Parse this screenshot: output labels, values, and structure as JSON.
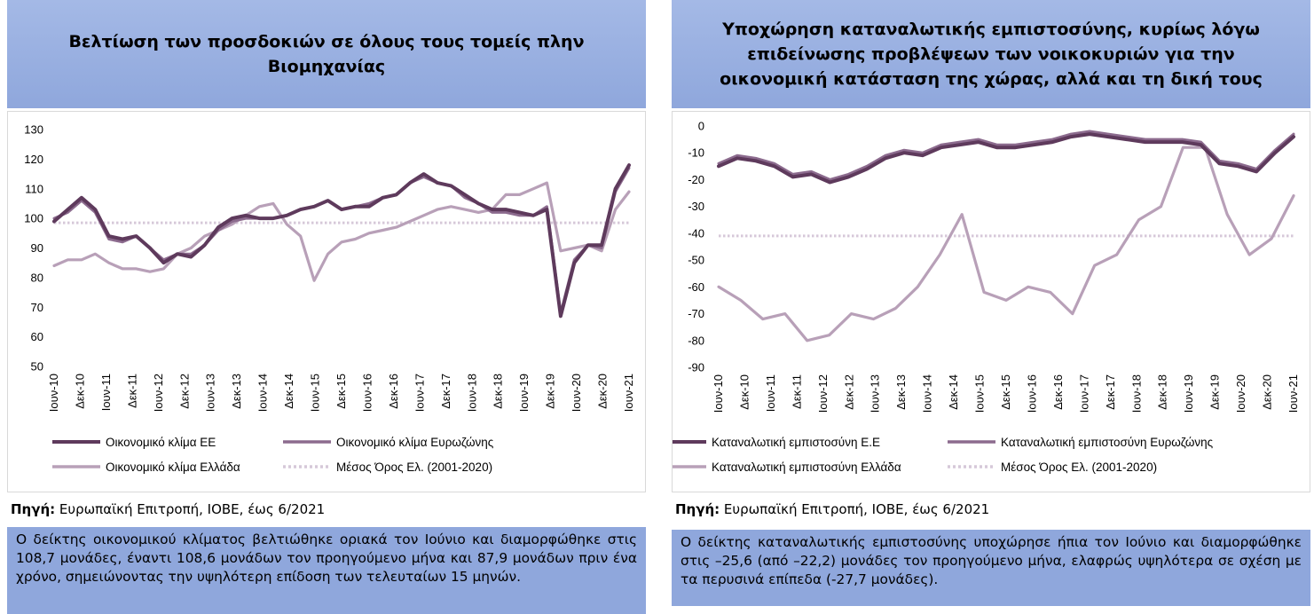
{
  "left": {
    "title": "Βελτίωση των προσδοκιών σε όλους τους τομείς πλην Βιομηχανίας",
    "source_label": "Πηγή:",
    "source_text": "Ευρωπαϊκή Επιτροπή, ΙΟΒΕ, έως 6/2021",
    "note": "Ο δείκτης οικονομικού κλίματος βελτιώθηκε οριακά τον Ιούνιο και διαμορφώθηκε στις 108,7 μονάδες, έναντι 108,6 μονάδων τον προηγούμενο μήνα και 87,9 μονάδων πριν ένα χρόνο, σημειώνοντας την υψηλότερη επίδοση των τελευταίων 15 μηνών."
  },
  "right": {
    "title": "Υποχώρηση καταναλωτικής εμπιστοσύνης, κυρίως λόγω επιδείνωσης προβλέψεων των νοικοκυριών για την οικονομική κατάσταση της χώρας, αλλά και τη δική τους",
    "source_label": "Πηγή:",
    "source_text": "Ευρωπαϊκή Επιτροπή, ΙΟΒΕ, έως 6/2021",
    "note": "Ο δείκτης καταναλωτικής εμπιστοσύνης υποχώρησε ήπια τον Ιούνιο και διαμορφώθηκε στις –25,6 (από –22,2) μονάδες τον προηγούμενο μήνα, ελαφρώς υψηλότερα σε σχέση με τα περυσινά επίπεδα (-27,7 μονάδες)."
  },
  "colors": {
    "ee": "#5e3a5c",
    "ez": "#8c6b8e",
    "gr": "#b8a0b8",
    "avg": "#d6c8d9",
    "title_bg": "#a4b9e6",
    "note_bg": "#8fa7dc"
  },
  "chart_data": [
    {
      "type": "line",
      "title": "",
      "xlabel": "",
      "ylabel": "",
      "ylim": [
        50,
        130
      ],
      "yticks": [
        50,
        60,
        70,
        80,
        90,
        100,
        110,
        120,
        130
      ],
      "legend": "bottom",
      "grid": false,
      "x_ticks": [
        "Ιουν-10",
        "Δεκ-10",
        "Ιουν-11",
        "Δεκ-11",
        "Ιουν-12",
        "Δεκ-12",
        "Ιουν-13",
        "Δεκ-13",
        "Ιουν-14",
        "Δεκ-14",
        "Ιουν-15",
        "Δεκ-15",
        "Ιουν-16",
        "Δεκ-16",
        "Ιουν-17",
        "Δεκ-17",
        "Ιουν-18",
        "Δεκ-18",
        "Ιουν-19",
        "Δεκ-19",
        "Ιουν-20",
        "Δεκ-20",
        "Ιουν-21"
      ],
      "series": [
        {
          "name": "Οικονομικό κλίμα ΕΕ",
          "style": "ee",
          "values": [
            99,
            103,
            107,
            103,
            94,
            93,
            94,
            90,
            85,
            88,
            87,
            91,
            97,
            100,
            101,
            100,
            100,
            101,
            103,
            104,
            106,
            103,
            104,
            104,
            107,
            108,
            112,
            115,
            112,
            111,
            108,
            105,
            103,
            103,
            102,
            101,
            103,
            67,
            85,
            91,
            91,
            110,
            118
          ]
        },
        {
          "name": "Οικονομικό κλίμα Ευρωζώνης",
          "style": "ez",
          "values": [
            100,
            102,
            106,
            102,
            93,
            92,
            94,
            90,
            86,
            88,
            88,
            91,
            96,
            99,
            100,
            100,
            100,
            101,
            103,
            104,
            106,
            103,
            104,
            105,
            107,
            108,
            112,
            114,
            112,
            111,
            107,
            105,
            102,
            102,
            101,
            101,
            104,
            68,
            86,
            91,
            90,
            109,
            117
          ]
        },
        {
          "name": "Οικονομικό κλίμα Ελλάδα",
          "style": "gr",
          "values": [
            84,
            86,
            86,
            88,
            85,
            83,
            83,
            82,
            83,
            88,
            90,
            94,
            96,
            98,
            101,
            104,
            105,
            98,
            94,
            79,
            88,
            92,
            93,
            95,
            96,
            97,
            99,
            101,
            103,
            104,
            103,
            102,
            103,
            108,
            108,
            110,
            112,
            89,
            90,
            91,
            89,
            103,
            109
          ]
        },
        {
          "name": "Μέσος Όρος Ελ. (2001-2020)",
          "style": "avg",
          "values": [
            98.5,
            98.5
          ]
        }
      ]
    },
    {
      "type": "line",
      "title": "",
      "xlabel": "",
      "ylabel": "",
      "ylim": [
        -90,
        0
      ],
      "yticks": [
        0,
        -10,
        -20,
        -30,
        -40,
        -50,
        -60,
        -70,
        -80,
        -90
      ],
      "legend": "bottom",
      "grid": false,
      "x_ticks": [
        "Ιουν-10",
        "Δεκ-10",
        "Ιουν-11",
        "Δεκ-11",
        "Ιουν-12",
        "Δεκ-12",
        "Ιουν-13",
        "Δεκ-13",
        "Ιουν-14",
        "Δεκ-14",
        "Ιουν-15",
        "Δεκ-15",
        "Ιουν-16",
        "Δεκ-16",
        "Ιουν-17",
        "Δεκ-17",
        "Ιουν-18",
        "Δεκ-18",
        "Ιουν-19",
        "Δεκ-19",
        "Ιουν-20",
        "Δεκ-20",
        "Ιουν-21"
      ],
      "series": [
        {
          "name": "Καταναλωτική εμπιστοσύνη Ε.Ε",
          "style": "ee",
          "values": [
            -15,
            -12,
            -13,
            -15,
            -19,
            -18,
            -21,
            -19,
            -16,
            -12,
            -10,
            -11,
            -8,
            -7,
            -6,
            -8,
            -8,
            -7,
            -6,
            -4,
            -3,
            -4,
            -5,
            -6,
            -6,
            -6,
            -7,
            -14,
            -15,
            -17,
            -10,
            -4
          ]
        },
        {
          "name": "Καταναλωτική εμπιστοσύνη Ευρωζώνης",
          "style": "ez",
          "values": [
            -14,
            -11,
            -12,
            -14,
            -18,
            -17,
            -20,
            -18,
            -15,
            -11,
            -9,
            -10,
            -7,
            -6,
            -5,
            -7,
            -7,
            -6,
            -5,
            -3,
            -2,
            -3,
            -4,
            -5,
            -5,
            -5,
            -6,
            -13,
            -14,
            -16,
            -9,
            -3
          ]
        },
        {
          "name": "Καταναλωτική εμπιστοσύνη Ελλάδα",
          "style": "gr",
          "values": [
            -60,
            -65,
            -72,
            -70,
            -80,
            -78,
            -70,
            -72,
            -68,
            -60,
            -48,
            -33,
            -62,
            -65,
            -60,
            -62,
            -70,
            -52,
            -48,
            -35,
            -30,
            -8,
            -8,
            -33,
            -48,
            -42,
            -26
          ]
        },
        {
          "name": "Μέσος Όρος Ελ. (2001-2020)",
          "style": "avg",
          "values": [
            -41,
            -41
          ]
        }
      ]
    }
  ]
}
